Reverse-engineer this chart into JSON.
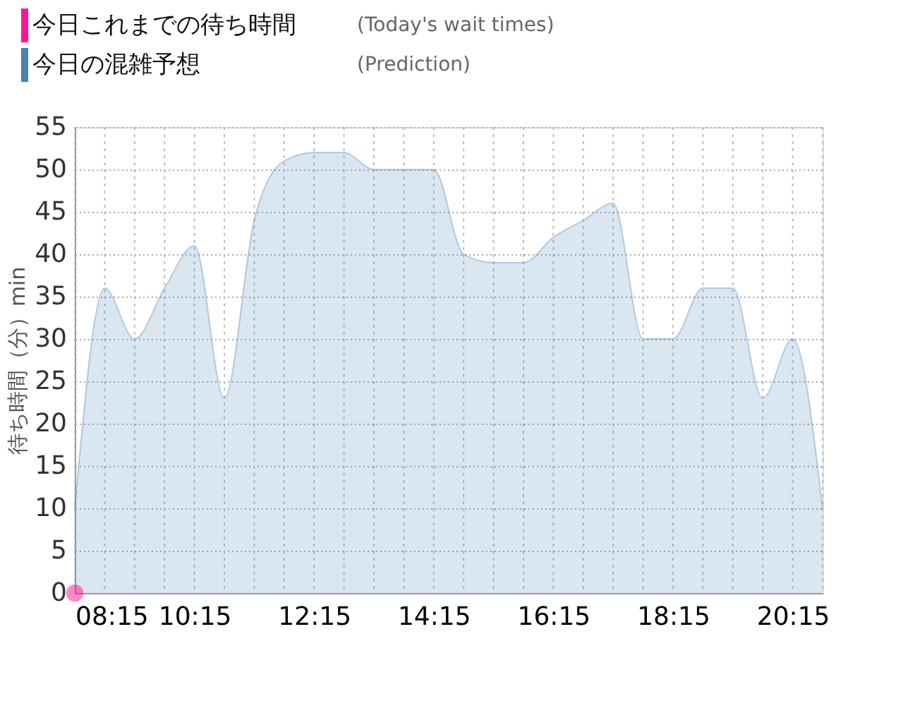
{
  "chart_data": {
    "type": "area",
    "ylabel": "待ち時間（分）min",
    "x": [
      8.25,
      8.75,
      9.25,
      9.75,
      10.25,
      10.75,
      11.25,
      11.75,
      12.25,
      12.75,
      13.25,
      13.75,
      14.25,
      14.75,
      15.25,
      15.75,
      16.25,
      16.75,
      17.25,
      17.75,
      18.25,
      18.75,
      19.25,
      19.75,
      20.25,
      20.75
    ],
    "series": [
      {
        "name": "今日これまでの待ち時間",
        "type": "scatter",
        "color": "#ff1493",
        "x": [
          8.25
        ],
        "values": [
          0
        ]
      },
      {
        "name": "今日の混雑予想",
        "type": "area",
        "color": "#4682b4",
        "values": [
          10,
          36,
          30,
          36,
          41,
          23,
          44,
          51,
          52,
          52,
          50,
          50,
          50,
          40,
          39,
          39,
          42,
          44,
          46,
          30,
          30,
          36,
          36,
          23,
          30,
          10
        ]
      }
    ],
    "annotations": [
      "(Today's wait times)",
      "(Prediction)"
    ],
    "xlim": [
      8.25,
      20.75
    ],
    "xticks": [
      {
        "value": 8.25,
        "label": "08:15"
      },
      {
        "value": 8.75,
        "label": null
      },
      {
        "value": 9.25,
        "label": null
      },
      {
        "value": 9.75,
        "label": null
      },
      {
        "value": 10.25,
        "label": "10:15"
      },
      {
        "value": 10.75,
        "label": null
      },
      {
        "value": 11.25,
        "label": null
      },
      {
        "value": 11.75,
        "label": null
      },
      {
        "value": 12.25,
        "label": "12:15"
      },
      {
        "value": 12.75,
        "label": null
      },
      {
        "value": 13.25,
        "label": null
      },
      {
        "value": 13.75,
        "label": null
      },
      {
        "value": 14.25,
        "label": "14:15"
      },
      {
        "value": 14.75,
        "label": null
      },
      {
        "value": 15.25,
        "label": null
      },
      {
        "value": 15.75,
        "label": null
      },
      {
        "value": 16.25,
        "label": "16:15"
      },
      {
        "value": 16.75,
        "label": null
      },
      {
        "value": 17.25,
        "label": null
      },
      {
        "value": 17.75,
        "label": null
      },
      {
        "value": 18.25,
        "label": "18:15"
      },
      {
        "value": 18.75,
        "label": null
      },
      {
        "value": 19.25,
        "label": null
      },
      {
        "value": 19.75,
        "label": null
      },
      {
        "value": 20.25,
        "label": "20:15"
      },
      {
        "value": 20.75,
        "label": null
      }
    ],
    "ylim": [
      0,
      55
    ],
    "yticks": [
      0,
      5,
      10,
      15,
      20,
      25,
      30,
      35,
      40,
      45,
      50,
      55
    ],
    "grid": true,
    "legend": "top left"
  }
}
